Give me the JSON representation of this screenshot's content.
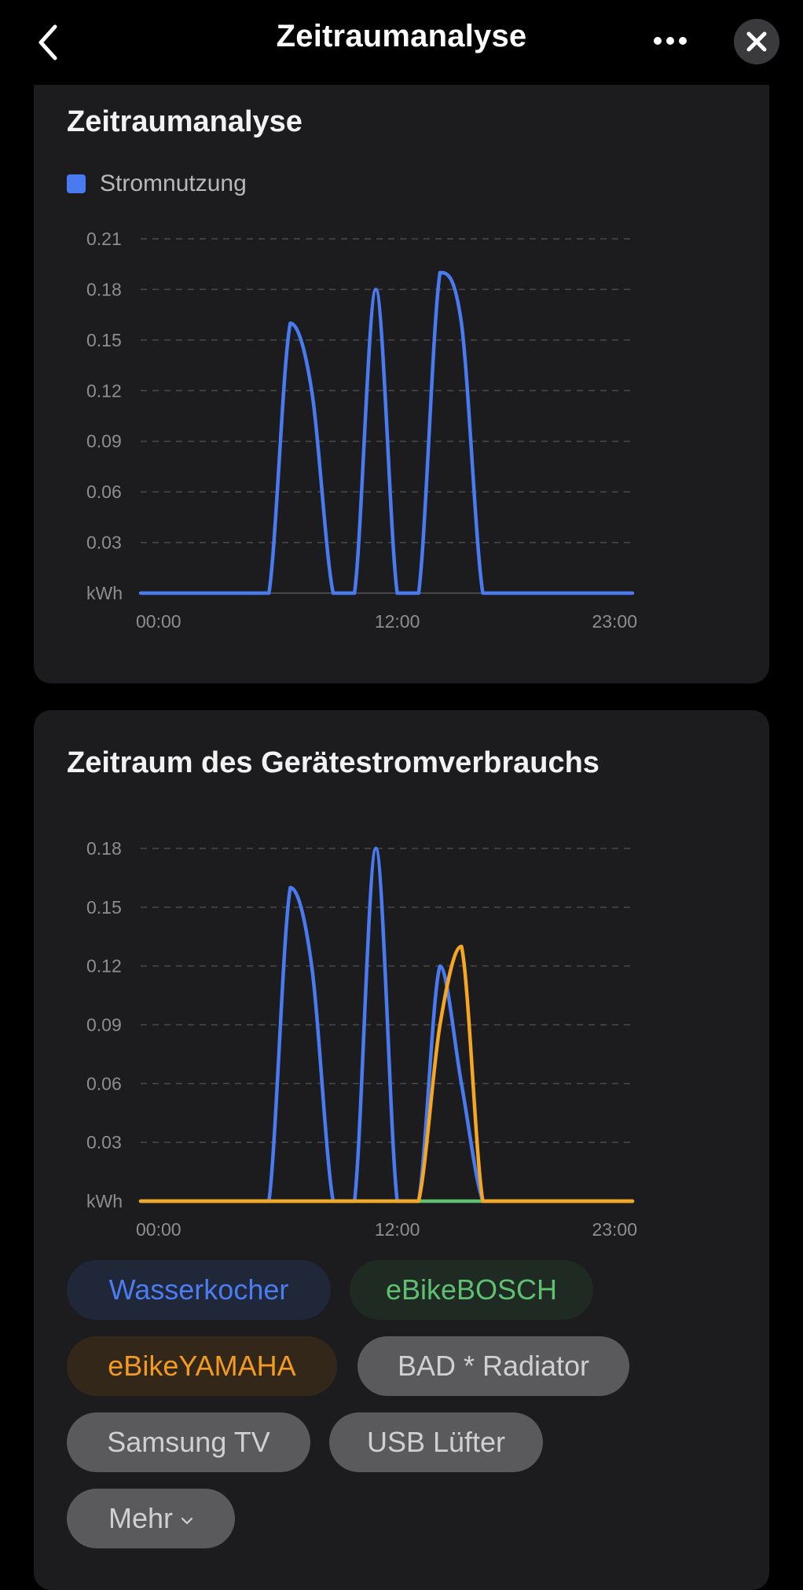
{
  "header": {
    "title": "Zeitraumanalyse"
  },
  "card1": {
    "title": "Zeitraumanalyse",
    "legend": "Stromnutzung"
  },
  "card2": {
    "title": "Zeitraum des Gerätestromverbrauchs",
    "chips": [
      {
        "label": "Wasserkocher",
        "style": "blue"
      },
      {
        "label": "eBikeBOSCH",
        "style": "green"
      },
      {
        "label": "eBikeYAMAHA",
        "style": "orange"
      },
      {
        "label": "BAD * Radiator",
        "style": "gray"
      },
      {
        "label": "Samsung TV",
        "style": "gray"
      },
      {
        "label": "USB Lüfter",
        "style": "gray"
      },
      {
        "label": "Mehr",
        "style": "gray"
      }
    ]
  },
  "colors": {
    "blue": "#4a7af0",
    "orange": "#f5a623",
    "green": "#5fc072"
  },
  "chart_data": [
    {
      "type": "line",
      "title": "Zeitraumanalyse",
      "x": [
        0,
        1,
        2,
        3,
        4,
        5,
        6,
        7,
        8,
        9,
        10,
        11,
        12,
        13,
        14,
        15,
        16,
        17,
        18,
        19,
        20,
        21,
        22,
        23
      ],
      "x_tick_labels": [
        "00:00",
        "12:00",
        "23:00"
      ],
      "y_tick_labels": [
        "kWh",
        "0.03",
        "0.06",
        "0.09",
        "0.12",
        "0.15",
        "0.18",
        "0.21"
      ],
      "ylim": [
        0,
        0.21
      ],
      "grid": true,
      "legend": "top-left",
      "series": [
        {
          "name": "Stromnutzung",
          "color": "#4a7af0",
          "values": [
            0,
            0,
            0,
            0,
            0,
            0,
            0,
            0.16,
            0.12,
            0,
            0,
            0.18,
            0,
            0,
            0.19,
            0.16,
            0,
            0,
            0,
            0,
            0,
            0,
            0,
            0
          ]
        }
      ]
    },
    {
      "type": "line",
      "title": "Zeitraum des Gerätestromverbrauchs",
      "x": [
        0,
        1,
        2,
        3,
        4,
        5,
        6,
        7,
        8,
        9,
        10,
        11,
        12,
        13,
        14,
        15,
        16,
        17,
        18,
        19,
        20,
        21,
        22,
        23
      ],
      "x_tick_labels": [
        "00:00",
        "12:00",
        "23:00"
      ],
      "y_tick_labels": [
        "kWh",
        "0.03",
        "0.06",
        "0.09",
        "0.12",
        "0.15",
        "0.18"
      ],
      "ylim": [
        0,
        0.18
      ],
      "grid": true,
      "series": [
        {
          "name": "Wasserkocher",
          "color": "#4a7af0",
          "values": [
            0,
            0,
            0,
            0,
            0,
            0,
            0,
            0.16,
            0.12,
            0,
            0,
            0.18,
            0,
            0,
            0.12,
            0.06,
            0,
            0,
            0,
            0,
            0,
            0,
            0,
            0
          ]
        },
        {
          "name": "eBikeBOSCH",
          "color": "#5fc072",
          "values": [
            0,
            0,
            0,
            0,
            0,
            0,
            0,
            0,
            0,
            0,
            0,
            0,
            0,
            0,
            0,
            0,
            0,
            0,
            0,
            0,
            0,
            0,
            0,
            0
          ]
        },
        {
          "name": "eBikeYAMAHA",
          "color": "#f5a623",
          "values": [
            0,
            0,
            0,
            0,
            0,
            0,
            0,
            0,
            0,
            0,
            0,
            0,
            0,
            0,
            0.09,
            0.13,
            0,
            0,
            0,
            0,
            0,
            0,
            0,
            0
          ]
        }
      ]
    }
  ]
}
